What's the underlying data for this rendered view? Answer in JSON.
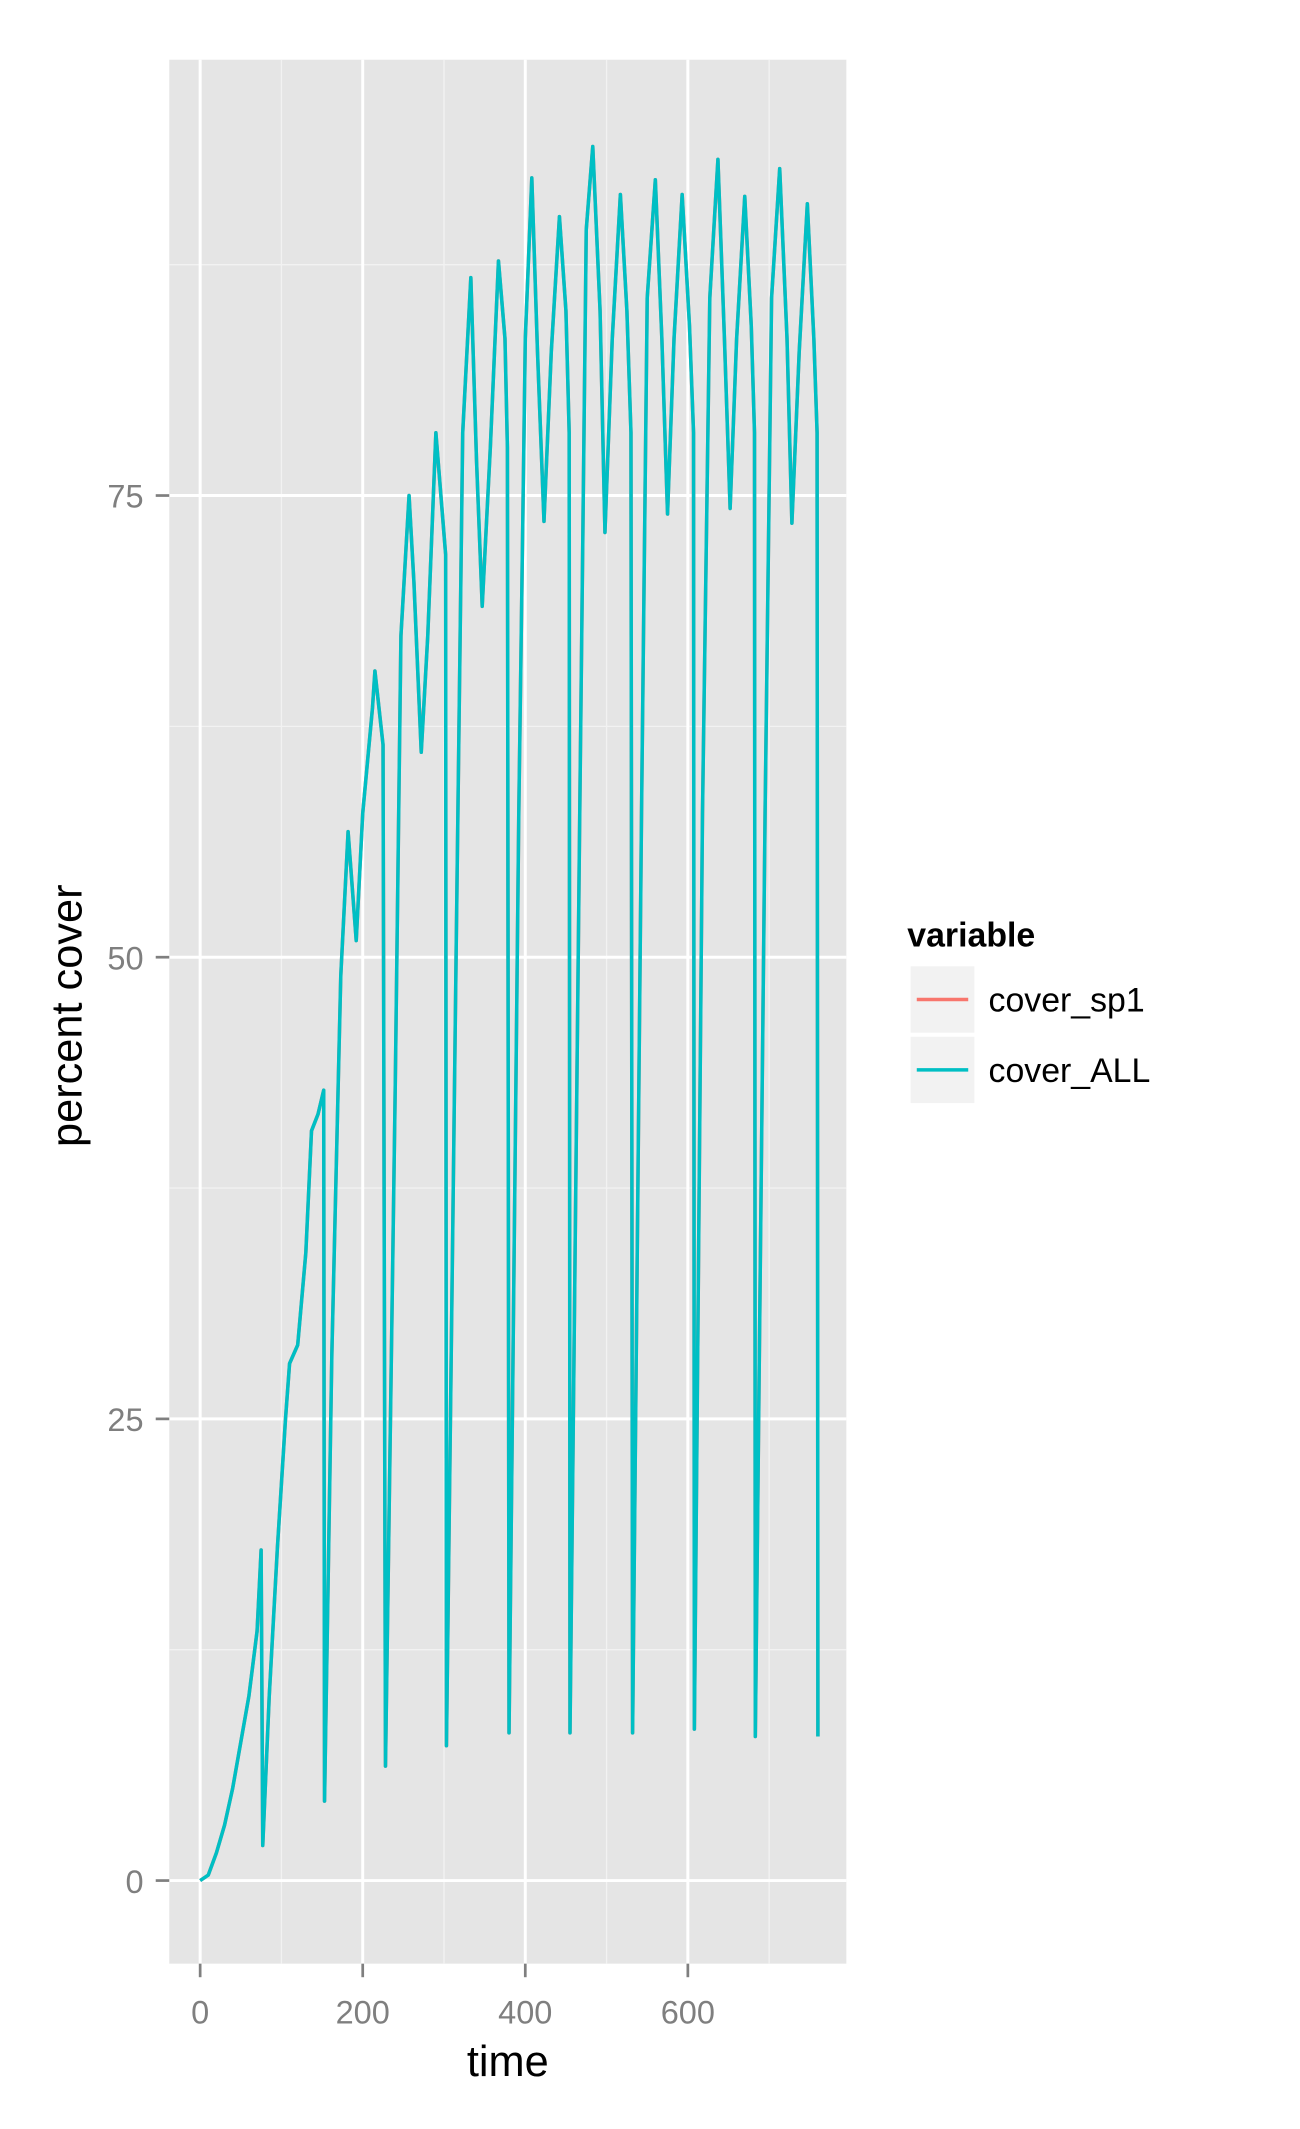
{
  "chart_data": {
    "type": "line",
    "x_label": "time",
    "y_label": "percent cover",
    "legend_title": "variable",
    "legend": "right",
    "grid": true,
    "xlim": [
      -38,
      795
    ],
    "ylim": [
      -4.5,
      98.6
    ],
    "xticks": [
      0,
      200,
      400,
      600
    ],
    "yticks": [
      0,
      25,
      50,
      75
    ],
    "x": [
      0,
      10,
      20,
      30,
      40,
      50,
      60,
      70,
      75,
      77,
      85,
      95,
      105,
      110,
      120,
      130,
      137,
      145,
      152,
      153,
      162,
      173,
      182,
      192,
      200,
      212,
      215,
      225,
      228,
      240,
      247,
      257,
      263,
      272,
      280,
      290,
      302,
      303,
      315,
      323,
      333,
      340,
      347,
      357,
      367,
      375,
      378,
      380,
      392,
      400,
      408,
      415,
      423,
      432,
      442,
      450,
      454,
      455,
      467,
      475,
      483,
      492,
      498,
      507,
      517,
      525,
      530,
      532,
      543,
      550,
      560,
      568,
      575,
      583,
      593,
      602,
      607,
      608,
      618,
      627,
      637,
      645,
      652,
      660,
      670,
      678,
      682,
      683,
      695,
      703,
      713,
      722,
      728,
      737,
      747,
      755,
      759,
      760
    ],
    "series": [
      {
        "name": "cover_sp1",
        "color": "#F8766D",
        "values": [
          0,
          0.3,
          1.5,
          3,
          5,
          7.5,
          10,
          13.5,
          17.9,
          1.9,
          10,
          18,
          25,
          28,
          29,
          34,
          40.6,
          41.5,
          42.8,
          4.3,
          28.5,
          49,
          56.8,
          50.9,
          57.8,
          63.5,
          65.5,
          61.5,
          6.2,
          43,
          67.4,
          75,
          70.3,
          61.1,
          67.4,
          78.4,
          71.8,
          7.3,
          50.5,
          78.4,
          86.8,
          76.9,
          69,
          77.6,
          87.7,
          83.5,
          77.6,
          8,
          57.8,
          83.5,
          92.2,
          82.8,
          73.6,
          82.8,
          90.1,
          85,
          78.4,
          8,
          57.8,
          89.4,
          93.9,
          85,
          73,
          83.5,
          91.3,
          85,
          78.4,
          8,
          57.8,
          85.7,
          92.1,
          83.5,
          74,
          83.5,
          91.3,
          84.2,
          78.4,
          8.2,
          57.8,
          85.7,
          93.2,
          83.5,
          74.3,
          83.5,
          91.2,
          84.2,
          78.4,
          7.8,
          57.8,
          85.7,
          92.7,
          83.5,
          73.5,
          82.8,
          90.8,
          83.5,
          78.4,
          7.8
        ]
      },
      {
        "name": "cover_ALL",
        "color": "#00BFC4",
        "values": [
          0,
          0.3,
          1.5,
          3,
          5,
          7.5,
          10,
          13.5,
          17.9,
          1.9,
          10,
          18,
          25,
          28,
          29,
          34,
          40.6,
          41.5,
          42.8,
          4.3,
          28.5,
          49,
          56.8,
          50.9,
          57.8,
          63.5,
          65.5,
          61.5,
          6.2,
          43,
          67.4,
          75,
          70.3,
          61.1,
          67.4,
          78.4,
          71.8,
          7.3,
          50.5,
          78.4,
          86.8,
          76.9,
          69,
          77.6,
          87.7,
          83.5,
          77.6,
          8,
          57.8,
          83.5,
          92.2,
          82.8,
          73.6,
          82.8,
          90.1,
          85,
          78.4,
          8,
          57.8,
          89.4,
          93.9,
          85,
          73,
          83.5,
          91.3,
          85,
          78.4,
          8,
          57.8,
          85.7,
          92.1,
          83.5,
          74,
          83.5,
          91.3,
          84.2,
          78.4,
          8.2,
          57.8,
          85.7,
          93.2,
          83.5,
          74.3,
          83.5,
          91.2,
          84.2,
          78.4,
          7.8,
          57.8,
          85.7,
          92.7,
          83.5,
          73.5,
          82.8,
          90.8,
          83.5,
          78.4,
          7.8
        ]
      }
    ]
  }
}
